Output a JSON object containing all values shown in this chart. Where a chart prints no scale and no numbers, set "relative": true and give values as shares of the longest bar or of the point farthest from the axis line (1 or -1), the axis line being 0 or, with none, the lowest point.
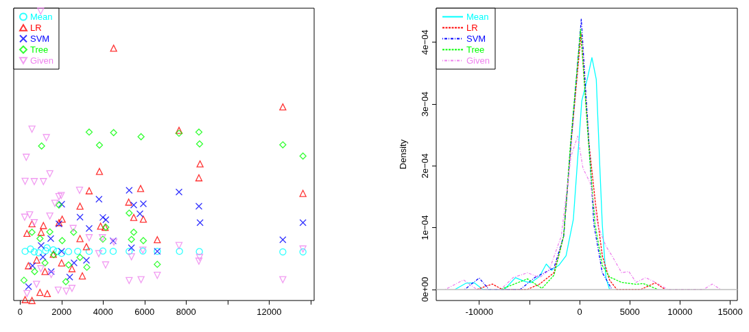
{
  "chart_data": [
    {
      "type": "scatter",
      "relative": true,
      "legend": "top left",
      "xlim": [
        -307,
        14170
      ],
      "xticks": [
        0,
        2000,
        4000,
        6000,
        8000,
        {
          "value": 10000,
          "label": null
        },
        12000,
        {
          "value": 14000,
          "label": null
        }
      ],
      "series": [
        {
          "name": "Mean",
          "color": "#00ffff",
          "marker": "circle",
          "x": [
            242,
            683,
            1234,
            1785,
            2336,
            2777,
            3328,
            3989,
            4485,
            5256,
            5917,
            6612,
            7680,
            8639,
            12661,
            13631,
            500,
            900,
            1300,
            1600,
            2000
          ],
          "values": [
            0.17,
            0.168,
            0.172,
            0.17,
            0.169,
            0.17,
            0.17,
            0.171,
            0.17,
            0.17,
            0.171,
            0.17,
            0.17,
            0.169,
            0.168,
            0.168,
            0.178,
            0.165,
            0.182,
            0.175,
            0.163
          ]
        },
        {
          "name": "LR",
          "color": "#ff0000",
          "marker": "triangle",
          "x": [
            4507,
            12661,
            7658,
            8672,
            8617,
            3824,
            3328,
            5807,
            13631,
            2887,
            5234,
            5477,
            5939,
            2028,
            573,
            1124,
            331,
            1014,
            1873,
            2887,
            4099,
            3879,
            3196,
            6612,
            959,
            1311,
            242,
            573,
            400,
            800,
            1200,
            1600,
            2000,
            2500,
            3000
          ],
          "values": [
            0.872,
            0.669,
            0.588,
            0.472,
            0.424,
            0.446,
            0.379,
            0.387,
            0.37,
            0.326,
            0.34,
            0.287,
            0.281,
            0.281,
            0.265,
            0.259,
            0.232,
            0.236,
            0.269,
            0.214,
            0.253,
            0.257,
            0.186,
            0.21,
            0.028,
            0.024,
            0.003,
            0,
            0.12,
            0.14,
            0.1,
            0.16,
            0.13,
            0.11,
            0.085
          ]
        },
        {
          "name": "SVM",
          "color": "#0000ff",
          "marker": "cross",
          "x": [
            5256,
            7658,
            2006,
            5477,
            5939,
            3802,
            8617,
            5774,
            3989,
            4132,
            1873,
            2887,
            8672,
            13631,
            3328,
            4485,
            12661,
            5366,
            6612,
            1014,
            1477,
            3196,
            2391,
            408,
            600,
            1100,
            1500,
            2000,
            2600
          ],
          "values": [
            0.381,
            0.375,
            0.333,
            0.33,
            0.334,
            0.35,
            0.326,
            0.3,
            0.287,
            0.279,
            0.265,
            0.288,
            0.269,
            0.269,
            0.249,
            0.206,
            0.21,
            0.182,
            0.17,
            0.19,
            0.214,
            0.139,
            0.081,
            0.048,
            0.12,
            0.15,
            0.1,
            0.17,
            0.13
          ]
        },
        {
          "name": "Tree",
          "color": "#00ff00",
          "marker": "diamond",
          "x": [
            3328,
            4507,
            5829,
            7658,
            8617,
            1036,
            3824,
            8650,
            12661,
            13631,
            5256,
            5477,
            5366,
            5939,
            3989,
            4132,
            1873,
            573,
            1433,
            2579,
            2028,
            959,
            2887,
            6612,
            3218,
            2204,
            187,
            2336,
            1620,
            700,
            1200
          ],
          "values": [
            0.582,
            0.58,
            0.566,
            0.578,
            0.582,
            0.534,
            0.537,
            0.541,
            0.538,
            0.499,
            0.302,
            0.236,
            0.211,
            0.207,
            0.212,
            0.253,
            0.33,
            0.236,
            0.237,
            0.236,
            0.207,
            0.214,
            0.149,
            0.125,
            0.115,
            0.065,
            0.07,
            0.123,
            0.158,
            0.1,
            0.13
          ]
        },
        {
          "name": "Given",
          "color": "#ee82ee",
          "marker": "triangle_down",
          "x": [
            992,
            573,
            1267,
            298,
            1433,
            242,
            683,
            1124,
            1983,
            1873,
            2865,
            1675,
            463,
            220,
            1433,
            683,
            2557,
            3328,
            3967,
            4518,
            3791,
            4121,
            7658,
            13631,
            8650,
            8617,
            5366,
            5917,
            6612,
            5256,
            5829,
            12661,
            1840,
            2226,
            2501,
            331,
            793,
            1000,
            1500
          ],
          "values": [
            1.0,
            0.592,
            0.563,
            0.495,
            0.438,
            0.412,
            0.411,
            0.411,
            0.363,
            0.359,
            0.381,
            0.336,
            0.296,
            0.288,
            0.292,
            0.269,
            0.249,
            0.217,
            0.217,
            0.202,
            0.162,
            0.123,
            0.19,
            0.178,
            0.149,
            0.136,
            0.151,
            0.174,
            0.087,
            0.069,
            0.072,
            0.072,
            0.036,
            0.032,
            0.042,
            0.024,
            0.056,
            0.11,
            0.09
          ]
        }
      ]
    },
    {
      "type": "line",
      "ylabel": "Density",
      "legend": "top left",
      "xlim": [
        -14280,
        15710
      ],
      "xticks": [
        -10000,
        {
          "value": -5000,
          "label": null
        },
        0,
        5000,
        10000,
        15000
      ],
      "ylim": [
        -1.8e-05,
        0.000455
      ],
      "yticks": [
        {
          "value": 0,
          "label": "0e+00"
        },
        {
          "value": 0.0001,
          "label": "1e−04"
        },
        {
          "value": 0.0002,
          "label": "2e−04"
        },
        {
          "value": 0.0003,
          "label": "3e−04"
        },
        {
          "value": 0.0004,
          "label": "4e−04"
        }
      ],
      "ref_lines": [
        {
          "axis": "y",
          "value": 0,
          "color": "#bebebe"
        }
      ],
      "series": [
        {
          "name": "Mean",
          "color": "#00ffff",
          "line_style": "solid",
          "x": [
            -12400,
            -11320,
            -10480,
            -9640,
            -7480,
            -6390,
            -5430,
            -4830,
            -3990,
            -3320,
            -2790,
            -2070,
            -1350,
            -625,
            216,
            817,
            1226,
            1659,
            2019,
            2260,
            2620,
            2981
          ],
          "values": [
            0,
            1e-05,
            1.06e-05,
            0,
            0,
            1.9e-05,
            1.25e-05,
            1.1e-05,
            2.1e-05,
            4.1e-05,
            3.1e-05,
            3.9e-05,
            5.45e-05,
            0.000113,
            0.000305,
            0.000344,
            0.000375,
            0.00034,
            0.000196,
            0.000105,
            1.9e-05,
            0
          ]
        },
        {
          "name": "LR",
          "color": "#ff0000",
          "line_style": "dashed",
          "x": [
            -10240,
            -8680,
            -7720,
            -5190,
            -3990,
            -2550,
            -1590,
            -865,
            144,
            938,
            1539,
            2260,
            2981,
            3702,
            6106,
            7549,
            8510
          ],
          "values": [
            0,
            8.6e-06,
            0,
            0,
            8.6e-06,
            2.7e-05,
            8.6e-05,
            0.000235,
            0.000414,
            0.000235,
            0.000145,
            5.45e-05,
            1.5e-05,
            0,
            0,
            1.06e-05,
            0
          ]
        },
        {
          "name": "SVM",
          "color": "#0000ff",
          "line_style": "dashdot",
          "x": [
            -11440,
            -10000,
            -9040,
            -5910,
            -4470,
            -2550,
            -1590,
            -865,
            168,
            938,
            1418,
            2260,
            3221
          ],
          "values": [
            0,
            1.84e-05,
            0,
            0,
            1.9e-05,
            3.5e-05,
            8.6e-05,
            0.000235,
            0.000438,
            0.000235,
            0.000105,
            2.7e-05,
            0
          ]
        },
        {
          "name": "Tree",
          "color": "#00ff00",
          "line_style": "dashed",
          "x": [
            -7840,
            -6390,
            -5190,
            -3750,
            -2550,
            -1590,
            -913,
            96,
            890,
            1539,
            2260,
            2981,
            4183,
            5625,
            6346,
            7790
          ],
          "values": [
            0,
            9.4e-06,
            1.7e-05,
            1.6e-06,
            2.3e-05,
            8.6e-05,
            0.000235,
            0.000421,
            0.000235,
            0.000105,
            3.9e-05,
            2e-05,
            1.14e-05,
            8.2e-06,
            9.4e-06,
            0
          ]
        },
        {
          "name": "Given",
          "color": "#ee82ee",
          "line_style": "dashdot",
          "x": [
            -13370,
            -11560,
            -10240,
            -7840,
            -6630,
            -5190,
            -3990,
            -3030,
            -1830,
            -865,
            -192,
            337,
            1058,
            1779,
            2620,
            3221,
            4183,
            4904,
            5625,
            6587,
            7549,
            8750,
            12357,
            13200,
            14040
          ],
          "values": [
            0,
            1.53e-05,
            0,
            0,
            1.9e-05,
            2.7e-05,
            1.9e-05,
            3.1e-05,
            8.6e-05,
            0.000215,
            0.000248,
            0.000196,
            0.000172,
            0.000105,
            7e-05,
            5.45e-05,
            2.7e-05,
            2.9e-05,
            1.14e-05,
            1.9e-05,
            1.14e-05,
            0,
            0,
            8.6e-06,
            0
          ]
        }
      ]
    }
  ]
}
